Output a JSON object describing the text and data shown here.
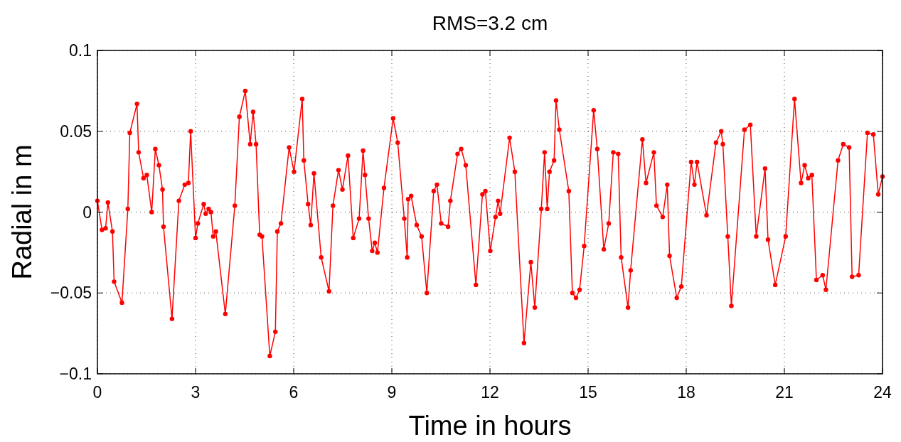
{
  "chart_data": {
    "type": "line",
    "title": "RMS=3.2 cm",
    "xlabel": "Time in hours",
    "ylabel": "Radial in m",
    "xlim": [
      0,
      24
    ],
    "xticks": [
      0,
      3,
      6,
      9,
      12,
      15,
      18,
      21,
      24
    ],
    "ylim": [
      -0.1,
      0.1
    ],
    "yticks": [
      {
        "value": -0.1,
        "label": "−0.1"
      },
      {
        "value": -0.05,
        "label": "−0.05"
      },
      0,
      0.05,
      0.1
    ],
    "grid": true,
    "marker": "circle",
    "line_style": "solid",
    "series": [
      {
        "color": "#ff0000",
        "x": [
          0,
          0.14,
          0.25,
          0.32,
          0.46,
          0.51,
          0.75,
          0.93,
          0.99,
          1.21,
          1.26,
          1.41,
          1.51,
          1.66,
          1.77,
          1.88,
          1.99,
          2.02,
          2.28,
          2.49,
          2.67,
          2.78,
          2.85,
          3.0,
          3.07,
          3.25,
          3.31,
          3.4,
          3.47,
          3.54,
          3.62,
          3.91,
          4.2,
          4.34,
          4.52,
          4.67,
          4.76,
          4.85,
          4.96,
          5.03,
          5.27,
          5.44,
          5.5,
          5.61,
          5.86,
          6.01,
          6.26,
          6.31,
          6.44,
          6.52,
          6.62,
          6.84,
          7.08,
          7.2,
          7.37,
          7.49,
          7.66,
          7.82,
          8.0,
          8.12,
          8.18,
          8.29,
          8.4,
          8.48,
          8.56,
          8.76,
          9.04,
          9.18,
          9.38,
          9.47,
          9.5,
          9.59,
          9.76,
          9.91,
          10.07,
          10.28,
          10.38,
          10.51,
          10.72,
          10.79,
          11.01,
          11.12,
          11.26,
          11.57,
          11.77,
          11.86,
          12.01,
          12.17,
          12.25,
          12.31,
          12.6,
          12.76,
          13.04,
          13.25,
          13.37,
          13.57,
          13.67,
          13.75,
          13.82,
          13.96,
          14.02,
          14.12,
          14.41,
          14.52,
          14.63,
          14.74,
          14.88,
          15.17,
          15.28,
          15.48,
          15.63,
          15.77,
          15.92,
          16.01,
          16.22,
          16.3,
          16.66,
          16.77,
          17.01,
          17.09,
          17.28,
          17.42,
          17.49,
          17.71,
          17.85,
          18.15,
          18.25,
          18.33,
          18.62,
          18.91,
          19.07,
          19.12,
          19.27,
          19.38,
          19.78,
          19.96,
          20.14,
          20.41,
          20.5,
          20.72,
          21.04,
          21.31,
          21.51,
          21.62,
          21.73,
          21.84,
          21.98,
          22.17,
          22.27,
          22.64,
          22.8,
          22.98,
          23.07,
          23.27,
          23.54,
          23.72,
          23.87,
          24.0
        ],
        "values": [
          0.007,
          -0.011,
          -0.01,
          0.006,
          -0.012,
          -0.043,
          -0.056,
          0.002,
          0.049,
          0.067,
          0.037,
          0.021,
          0.023,
          0.0,
          0.039,
          0.029,
          0.014,
          -0.009,
          -0.066,
          0.007,
          0.017,
          0.018,
          0.05,
          -0.016,
          -0.007,
          0.005,
          -0.001,
          0.002,
          0.0,
          -0.015,
          -0.012,
          -0.063,
          0.004,
          0.059,
          0.075,
          0.042,
          0.062,
          0.042,
          -0.014,
          -0.015,
          -0.089,
          -0.074,
          -0.012,
          -0.007,
          0.04,
          0.025,
          0.07,
          0.032,
          0.005,
          -0.008,
          0.024,
          -0.028,
          -0.049,
          0.004,
          0.026,
          0.014,
          0.035,
          -0.016,
          -0.004,
          0.038,
          0.023,
          -0.004,
          -0.024,
          -0.019,
          -0.025,
          0.015,
          0.058,
          0.043,
          -0.004,
          -0.028,
          0.008,
          0.01,
          -0.008,
          -0.015,
          -0.05,
          0.013,
          0.017,
          -0.007,
          -0.009,
          0.007,
          0.036,
          0.039,
          0.029,
          -0.045,
          0.011,
          0.013,
          -0.024,
          -0.003,
          0.007,
          -0.001,
          0.046,
          0.025,
          -0.081,
          -0.031,
          -0.059,
          0.002,
          0.037,
          0.002,
          0.025,
          0.032,
          0.069,
          0.051,
          0.013,
          -0.05,
          -0.053,
          -0.048,
          -0.021,
          0.063,
          0.039,
          -0.023,
          -0.007,
          0.037,
          0.036,
          -0.028,
          -0.059,
          -0.036,
          0.045,
          0.018,
          0.037,
          0.004,
          -0.003,
          0.017,
          -0.027,
          -0.053,
          -0.046,
          0.031,
          0.017,
          0.031,
          -0.002,
          0.043,
          0.05,
          0.042,
          -0.015,
          -0.058,
          0.051,
          0.054,
          -0.015,
          0.027,
          -0.017,
          -0.045,
          -0.015,
          0.07,
          0.018,
          0.029,
          0.021,
          0.023,
          -0.042,
          -0.039,
          -0.048,
          0.032,
          0.042,
          0.04,
          -0.04,
          -0.039,
          0.049,
          0.048,
          0.011,
          0.022
        ]
      }
    ]
  }
}
